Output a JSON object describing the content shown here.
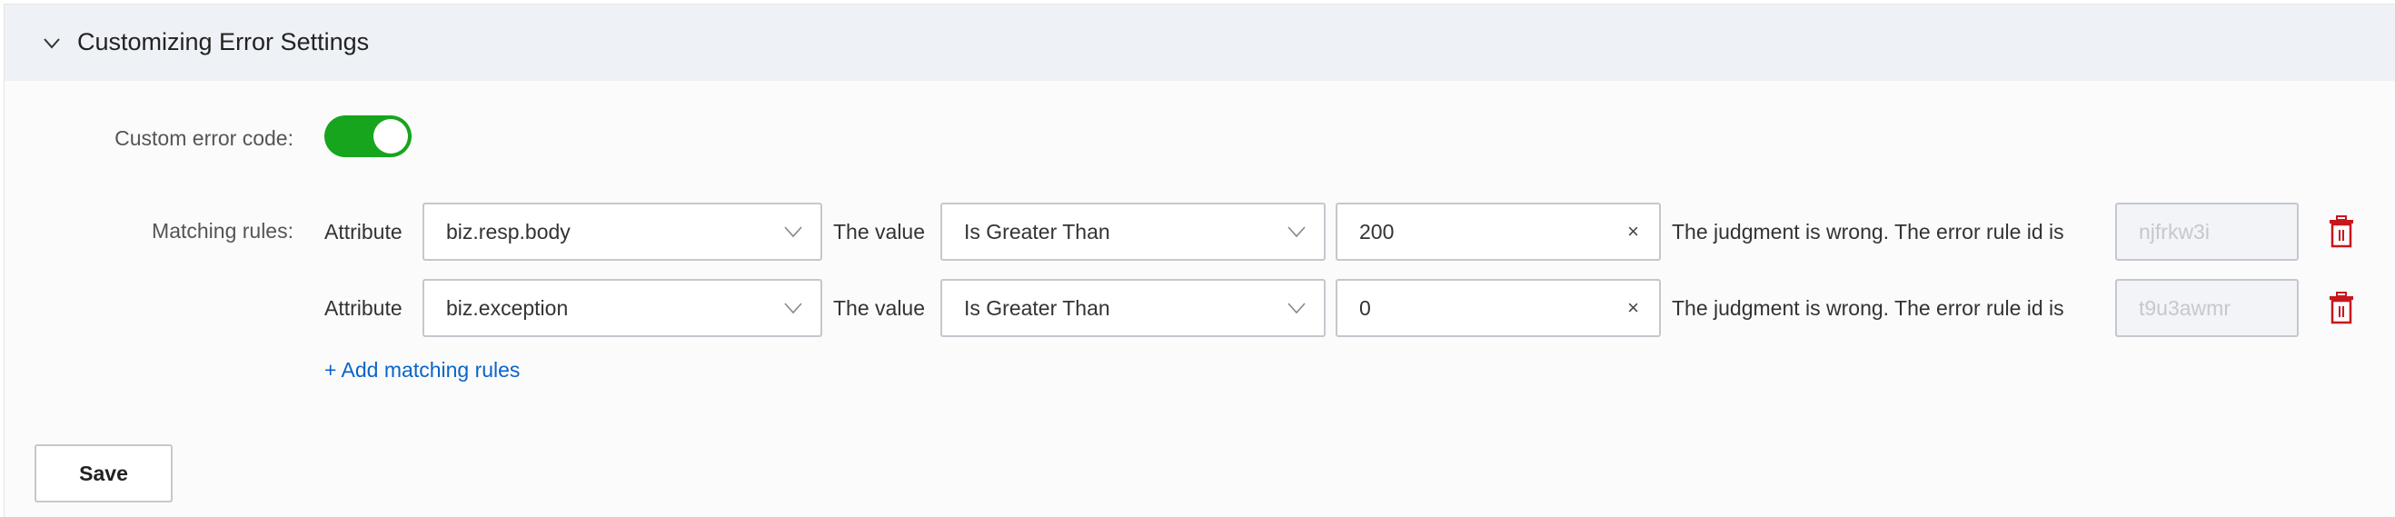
{
  "section": {
    "title": "Customizing Error Settings",
    "expanded": true
  },
  "custom_error_code": {
    "label": "Custom error code:",
    "enabled": true
  },
  "matching_rules": {
    "label": "Matching rules:",
    "rules": [
      {
        "attribute_label": "Attribute",
        "attribute": "biz.resp.body",
        "value_label": "The value",
        "operator": "Is Greater Than",
        "threshold": "200",
        "suffix": "The judgment is wrong. The error rule id is",
        "rule_id": "njfrkw3i"
      },
      {
        "attribute_label": "Attribute",
        "attribute": "biz.exception",
        "value_label": "The value",
        "operator": "Is Greater Than",
        "threshold": "0",
        "suffix": "The judgment is wrong. The error rule id is",
        "rule_id": "t9u3awmr"
      }
    ],
    "add_label": "+ Add matching rules"
  },
  "save_label": "Save",
  "colors": {
    "toggle_on": "#16a51c",
    "link": "#0a64c8",
    "delete": "#c8161d",
    "header_bg": "#eef1f5"
  }
}
